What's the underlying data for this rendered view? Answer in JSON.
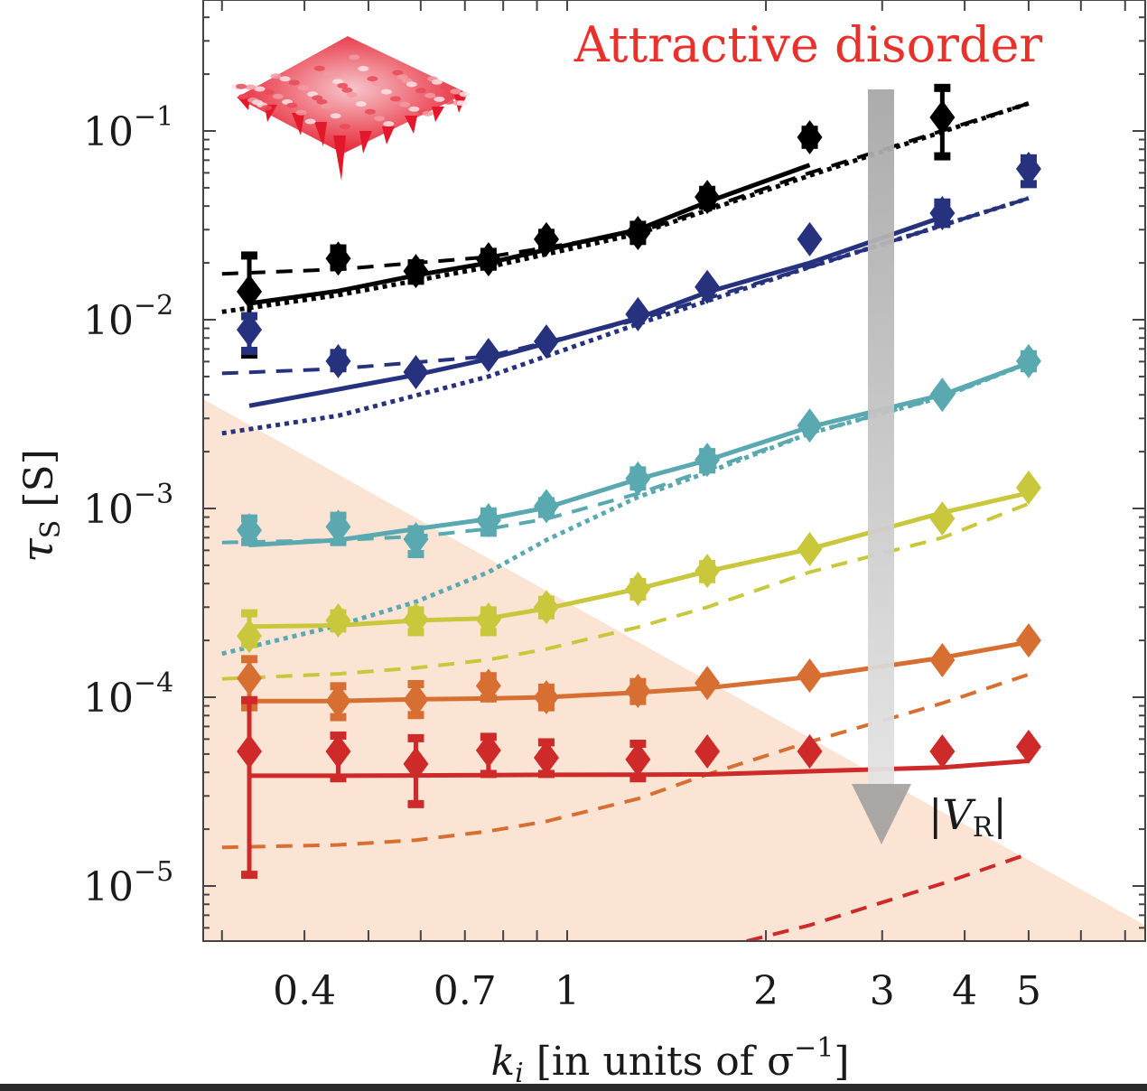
{
  "chart_data": {
    "type": "line",
    "title": "Attractive disorder",
    "xlabel": "k_i [in units of σ^-1]",
    "ylabel": "τ_S [S]",
    "xscale": "log",
    "yscale": "log",
    "xlim": [
      0.28,
      7.5
    ],
    "ylim": [
      5.1e-06,
      0.49
    ],
    "x_ticks": [
      {
        "value": 0.4,
        "label": "0.4"
      },
      {
        "value": 0.7,
        "label": "0.7"
      },
      {
        "value": 1,
        "label": "1"
      },
      {
        "value": 2,
        "label": "2"
      },
      {
        "value": 3,
        "label": "3"
      },
      {
        "value": 4,
        "label": "4"
      },
      {
        "value": 5,
        "label": "5"
      }
    ],
    "y_ticks": [
      {
        "value": 0.1,
        "base": "10",
        "exp": "−1"
      },
      {
        "value": 0.01,
        "base": "10",
        "exp": "−2"
      },
      {
        "value": 0.001,
        "base": "10",
        "exp": "−3"
      },
      {
        "value": 0.0001,
        "base": "10",
        "exp": "−4"
      },
      {
        "value": 1e-05,
        "base": "10",
        "exp": "−5"
      }
    ],
    "grid": false,
    "x": [
      0.33,
      0.45,
      0.59,
      0.76,
      0.93,
      1.28,
      1.63,
      2.33,
      3.7,
      5.0
    ],
    "series": [
      {
        "name": "black",
        "color": "#000000",
        "markers": [
          0.0141,
          0.0211,
          0.0181,
          0.0209,
          0.0267,
          0.0288,
          0.0447,
          0.0926,
          0.118,
          null
        ],
        "errors": [
          [
            0.0065,
            0.022
          ],
          [
            0.019,
            0.024
          ],
          [
            0.016,
            0.02
          ],
          [
            0.019,
            0.023
          ],
          [
            0.024,
            0.029
          ],
          [
            0.026,
            0.032
          ],
          [
            0.04,
            0.049
          ],
          [
            0.084,
            0.102
          ],
          [
            0.073,
            0.17
          ],
          null
        ],
        "solid": {
          "x": [
            0.33,
            0.45,
            0.59,
            0.76,
            0.93,
            1.28,
            1.63,
            2.33
          ],
          "y": [
            0.0122,
            0.0142,
            0.0172,
            0.02,
            0.0235,
            0.03,
            0.042,
            0.066
          ]
        },
        "dashed": {
          "x": [
            0.3,
            0.45,
            0.76,
            1.28,
            2.33,
            5.0
          ],
          "y": [
            0.0175,
            0.0185,
            0.0215,
            0.029,
            0.06,
            0.14
          ]
        },
        "dotted": {
          "x": [
            0.3,
            0.45,
            0.76,
            1.28,
            2.33,
            5.0
          ],
          "y": [
            0.011,
            0.0135,
            0.019,
            0.0285,
            0.058,
            0.14
          ]
        }
      },
      {
        "name": "navy",
        "color": "#27327f",
        "markers": [
          0.00885,
          0.00603,
          0.00528,
          0.0065,
          0.00767,
          0.0107,
          0.0149,
          0.0267,
          0.0367,
          0.063
        ],
        "errors": [
          [
            0.0068,
            0.0105
          ],
          [
            0.0055,
            0.0067
          ],
          null,
          null,
          null,
          null,
          null,
          null,
          [
            0.032,
            0.042
          ],
          [
            0.052,
            0.072
          ]
        ],
        "solid": {
          "x": [
            0.33,
            0.59,
            0.76,
            0.93,
            1.28,
            1.63,
            2.33,
            3.7
          ],
          "y": [
            0.0035,
            0.0051,
            0.0062,
            0.0075,
            0.0102,
            0.014,
            0.02,
            0.035
          ]
        },
        "dashed": {
          "x": [
            0.3,
            0.45,
            0.76,
            1.28,
            2.33,
            5.0
          ],
          "y": [
            0.0052,
            0.0055,
            0.0064,
            0.01,
            0.019,
            0.044
          ]
        },
        "dotted": {
          "x": [
            0.3,
            0.45,
            0.76,
            1.28,
            2.33,
            5.0
          ],
          "y": [
            0.0025,
            0.0031,
            0.005,
            0.0095,
            0.019,
            0.044
          ]
        }
      },
      {
        "name": "teal",
        "color": "#5aa9b0",
        "markers": [
          0.000767,
          0.0008,
          0.000688,
          0.000867,
          0.00103,
          0.00144,
          0.00181,
          0.00275,
          0.004,
          0.00603
        ],
        "errors": [
          [
            0.00066,
            0.00089
          ],
          [
            0.00066,
            0.00092
          ],
          [
            0.00057,
            0.00078
          ],
          [
            0.00074,
            0.00097
          ],
          [
            0.00093,
            0.0011
          ],
          [
            0.0013,
            0.0016
          ],
          [
            0.0016,
            0.002
          ],
          null,
          null,
          [
            0.0055,
            0.0066
          ]
        ],
        "solid": {
          "x": [
            0.33,
            0.45,
            0.59,
            0.76,
            0.93,
            1.28,
            1.63,
            2.33,
            3.7,
            5.0
          ],
          "y": [
            0.00064,
            0.00068,
            0.00078,
            0.00088,
            0.00101,
            0.00143,
            0.0018,
            0.0027,
            0.004,
            0.0059
          ]
        },
        "dashed": {
          "x": [
            0.3,
            0.45,
            0.59,
            0.76,
            0.93,
            1.28,
            1.63,
            2.33,
            3.7,
            5.0
          ],
          "y": [
            0.00066,
            0.00068,
            0.00071,
            0.00078,
            0.00088,
            0.0012,
            0.0016,
            0.0025,
            0.0039,
            0.0059
          ]
        },
        "dotted": {
          "x": [
            0.3,
            0.45,
            0.59,
            0.76,
            0.93,
            1.28,
            1.63,
            2.33,
            3.7,
            5.0
          ],
          "y": [
            0.00017,
            0.00024,
            0.00032,
            0.00046,
            0.00068,
            0.00115,
            0.00155,
            0.0025,
            0.0039,
            0.0059
          ]
        }
      },
      {
        "name": "yellow-green",
        "color": "#c9c83d",
        "markers": [
          0.000211,
          0.000255,
          0.000258,
          0.000258,
          0.0003,
          0.000375,
          0.000467,
          0.000609,
          0.000885,
          0.00129
        ],
        "errors": [
          [
            0.00019,
            0.00028
          ],
          [
            0.00023,
            0.00028
          ],
          [
            0.00022,
            0.00029
          ],
          [
            0.00022,
            0.00029
          ],
          [
            0.00027,
            0.00033
          ],
          [
            0.00034,
            0.00041
          ],
          [
            0.00042,
            0.00051
          ],
          null,
          null,
          null
        ],
        "solid": {
          "x": [
            0.33,
            0.45,
            0.59,
            0.76,
            0.93,
            1.28,
            1.63,
            2.33,
            3.7,
            5.0
          ],
          "y": [
            0.000237,
            0.00024,
            0.000255,
            0.000262,
            0.000295,
            0.000375,
            0.000465,
            0.00061,
            0.00095,
            0.00121
          ]
        },
        "dashed": {
          "x": [
            0.3,
            0.45,
            0.59,
            0.76,
            0.93,
            1.28,
            1.63,
            2.33,
            3.7,
            5.0
          ],
          "y": [
            0.000125,
            0.000133,
            0.000143,
            0.000158,
            0.00018,
            0.000235,
            0.0003,
            0.00046,
            0.0007,
            0.00106
          ]
        }
      },
      {
        "name": "orange",
        "color": "#d86f32",
        "markers": [
          0.000126,
          9.55e-05,
          9.7e-05,
          0.000115,
          0.0001,
          0.000108,
          0.000119,
          0.00013,
          0.000157,
          0.0002
        ],
        "errors": [
          [
            8.8e-05,
            0.00016
          ],
          [
            7.8e-05,
            0.000115
          ],
          [
            8e-05,
            0.000118
          ],
          [
            9.8e-05,
            0.00013
          ],
          [
            8.8e-05,
            0.000113
          ],
          [
            9.5e-05,
            0.000121
          ],
          null,
          null,
          null,
          null
        ],
        "solid": {
          "x": [
            0.33,
            0.45,
            0.59,
            0.76,
            0.93,
            1.28,
            1.63,
            2.33,
            3.7,
            5.0
          ],
          "y": [
            9.55e-05,
            9.55e-05,
            9.75e-05,
            9.85e-05,
            0.0001,
            0.000106,
            0.000112,
            0.000128,
            0.000162,
            0.000196
          ]
        },
        "dashed": {
          "x": [
            0.3,
            0.45,
            0.59,
            0.76,
            0.93,
            1.28,
            1.63,
            2.33,
            3.7,
            5.0
          ],
          "y": [
            1.6e-05,
            1.65e-05,
            1.75e-05,
            1.95e-05,
            2.2e-05,
            2.9e-05,
            3.9e-05,
            5.8e-05,
            9.3e-05,
            0.000132
          ]
        }
      },
      {
        "name": "red",
        "color": "#cd2a29",
        "markers": [
          5.16e-05,
          5.16e-05,
          4.43e-05,
          5.23e-05,
          4.78e-05,
          4.68e-05,
          5.16e-05,
          5.16e-05,
          5.16e-05,
          5.46e-05
        ],
        "errors": [
          [
            1.14e-05,
            9.7e-05
          ],
          [
            3.7e-05,
            6.3e-05
          ],
          [
            2.7e-05,
            6.1e-05
          ],
          [
            3.9e-05,
            6.2e-05
          ],
          [
            3.9e-05,
            5.8e-05
          ],
          [
            3.7e-05,
            5.7e-05
          ],
          null,
          null,
          null,
          null
        ],
        "solid": {
          "x": [
            0.33,
            0.45,
            0.59,
            0.76,
            0.93,
            1.28,
            1.63,
            2.33,
            3.7,
            5.0
          ],
          "y": [
            3.84e-05,
            3.84e-05,
            3.85e-05,
            3.87e-05,
            3.88e-05,
            3.89e-05,
            3.9e-05,
            4.05e-05,
            4.25e-05,
            4.6e-05
          ]
        },
        "dashed": {
          "x": [
            1.87,
            2.33,
            3.7,
            5.0
          ],
          "y": [
            5.1e-06,
            6.2e-06,
            1.03e-05,
            1.48e-05
          ]
        }
      }
    ],
    "annotations": {
      "arrow_label_main": "|V",
      "arrow_label_sub": "R",
      "arrow_label_end": "|",
      "arrow_meaning": "increasing |V_R| downward",
      "arrow_x": 3.0,
      "arrow_y_start": 0.1,
      "arrow_y_end": 3.5e-05
    },
    "shaded_region": {
      "description": "peach triangular region",
      "color": "#fce4d4",
      "vertices": [
        [
          0.28,
          0.0038
        ],
        [
          7.5,
          6.2e-06
        ],
        [
          7.5,
          5.1e-06
        ],
        [
          0.28,
          5.1e-06
        ]
      ]
    },
    "inset": "3D red disorder surface rendering"
  },
  "labels": {
    "xlabel_k": "k",
    "xlabel_sub": "i",
    "xlabel_text": "[in units of σ",
    "xlabel_sup": "−1",
    "xlabel_end": "]",
    "ylabel_tau": "τ",
    "ylabel_sub": "S",
    "ylabel_unit": "[S]"
  }
}
